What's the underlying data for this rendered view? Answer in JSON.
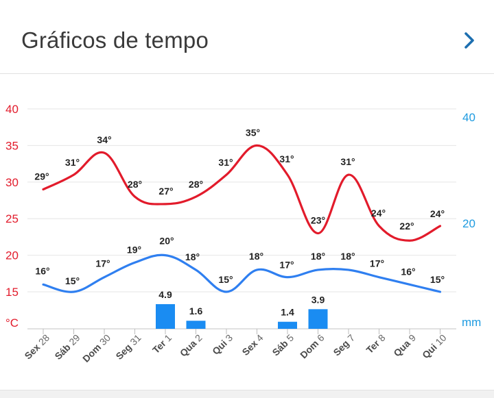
{
  "header": {
    "title": "Gráficos de tempo"
  },
  "icons": {
    "chevron": "chevron-right-icon"
  },
  "colors": {
    "max": "#e21b2b",
    "min": "#2f7ff0",
    "rain": "#1a8cf2",
    "right_axis": "#1e9be0",
    "grid": "#e6e6e6"
  },
  "chart_data": {
    "type": "line",
    "categories": [
      {
        "day": "Sex",
        "num": "28"
      },
      {
        "day": "Sáb",
        "num": "29"
      },
      {
        "day": "Dom",
        "num": "30"
      },
      {
        "day": "Seg",
        "num": "31"
      },
      {
        "day": "Ter",
        "num": "1"
      },
      {
        "day": "Qua",
        "num": "2"
      },
      {
        "day": "Qui",
        "num": "3"
      },
      {
        "day": "Sex",
        "num": "4"
      },
      {
        "day": "Sáb",
        "num": "5"
      },
      {
        "day": "Dom",
        "num": "6"
      },
      {
        "day": "Seg",
        "num": "7"
      },
      {
        "day": "Ter",
        "num": "8"
      },
      {
        "day": "Qua",
        "num": "9"
      },
      {
        "day": "Qui",
        "num": "10"
      }
    ],
    "series": [
      {
        "values": [
          29,
          31,
          34,
          28,
          27,
          28,
          31,
          35,
          31,
          23,
          31,
          24,
          22,
          24
        ],
        "labels": [
          "29°",
          "31°",
          "34°",
          "28°",
          "27°",
          "28°",
          "31°",
          "35°",
          "31°",
          "23°",
          "31°",
          "24°",
          "22°",
          "24°"
        ],
        "color": "#e21b2b"
      },
      {
        "values": [
          16,
          15,
          17,
          19,
          20,
          18,
          15,
          18,
          17,
          18,
          18,
          17,
          16,
          15
        ],
        "labels": [
          "16°",
          "15°",
          "17°",
          "19°",
          "20°",
          "18°",
          "15°",
          "18°",
          "17°",
          "18°",
          "18°",
          "17°",
          "16°",
          "15°"
        ],
        "color": "#2f7ff0"
      },
      {
        "type": "bar",
        "values": [
          0,
          0,
          0,
          0,
          4.9,
          1.6,
          0,
          0,
          1.4,
          3.9,
          0,
          0,
          0,
          0
        ],
        "labels": [
          "",
          "",
          "",
          "",
          "4.9",
          "1.6",
          "",
          "",
          "1.4",
          "3.9",
          "",
          "",
          "",
          ""
        ],
        "color": "#1a8cf2"
      }
    ],
    "y_left": {
      "ticks": [
        "40",
        "35",
        "30",
        "25",
        "20",
        "15"
      ],
      "unit": "°C",
      "range": [
        10,
        40
      ]
    },
    "y_right": {
      "ticks": [
        "40",
        "20"
      ],
      "unit": "mm"
    },
    "grid": true
  }
}
